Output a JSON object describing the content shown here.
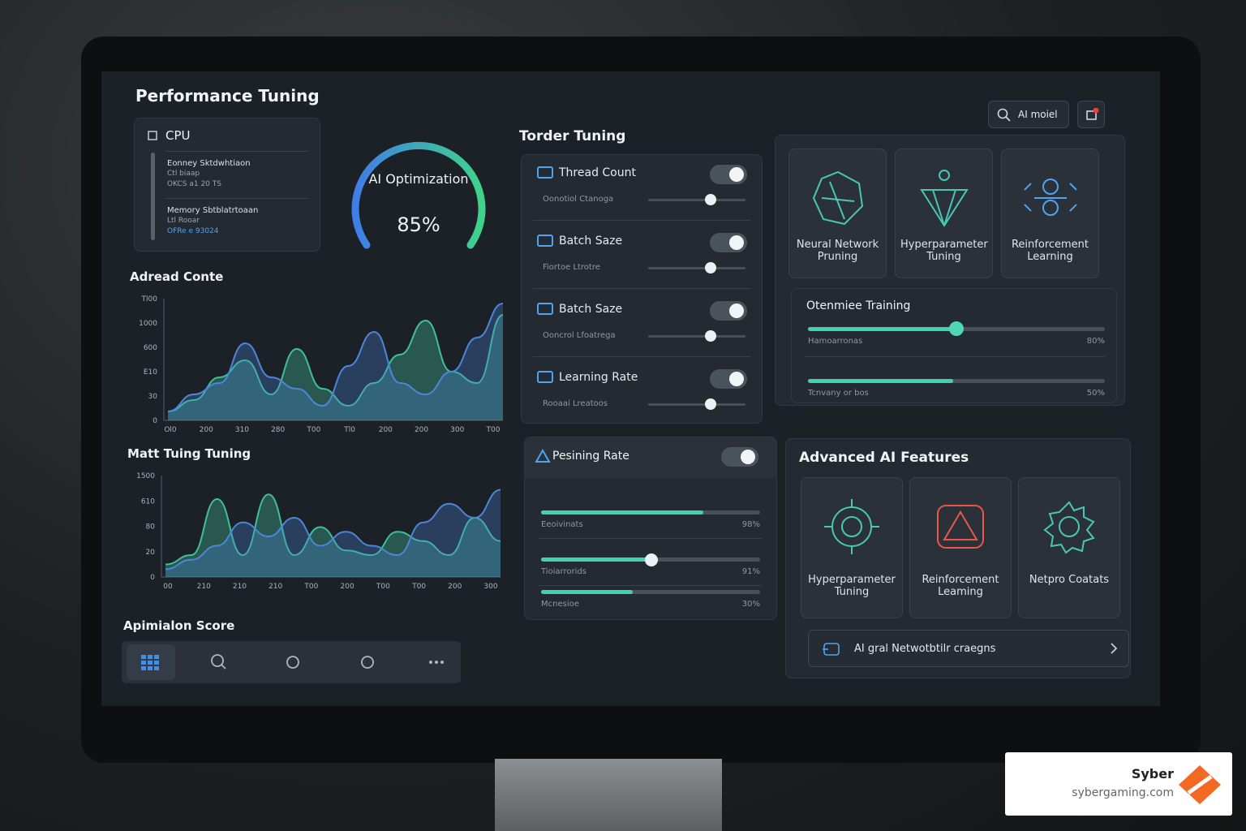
{
  "header": {
    "title": "Performance Tuning",
    "search": "AI moiel"
  },
  "cpu": {
    "title": "CPU",
    "items": [
      {
        "name": "Eonney Sktdwhtiaon",
        "lines": [
          "Ctl biaap",
          "OKCS a1 20 TS"
        ]
      },
      {
        "name": "Memory Sbtblatrtoaan",
        "lines": [
          "Ltl Rooar",
          "OFRe e 93024"
        ]
      }
    ]
  },
  "gauge": {
    "label": "AI Optimization",
    "value": "85%"
  },
  "charts": [
    {
      "title": "Adread Conte",
      "yticks": [
        "Tl00",
        "1000",
        "600",
        "E10",
        "30",
        "0"
      ],
      "xticks": [
        "Ol0",
        "200",
        "310",
        "280",
        "T00",
        "Tl0",
        "200",
        "200",
        "300",
        "T00"
      ]
    },
    {
      "title": "Matt Tuing Tuning",
      "yticks": [
        "1500",
        "610",
        "80",
        "20",
        "0"
      ],
      "xticks": [
        "00",
        "210",
        "210",
        "210",
        "T00",
        "200",
        "T00",
        "T00",
        "200",
        "300"
      ]
    }
  ],
  "score": {
    "title": "Apimialon Score"
  },
  "tuning": {
    "title": "Torder Tuning",
    "items": [
      {
        "name": "Thread Count",
        "sub": "Oonotiol Ctanoga"
      },
      {
        "name": "Batch Saze",
        "sub": "Fiortoe Ltrotre"
      },
      {
        "name": "Batch Saze",
        "sub": "Ooncrol Lfoatrega"
      },
      {
        "name": "Learning Rate",
        "sub": "Rooaai Lreatoos"
      }
    ]
  },
  "rate": {
    "title": "Pesining Rate",
    "rows": [
      {
        "name": "Eeoivinats",
        "value": "98%"
      },
      {
        "name": "Tioiarrorids",
        "value": "91%"
      },
      {
        "name": "Mcnesioe",
        "value": "30%"
      }
    ]
  },
  "features": {
    "cards": [
      "Neural Network Pruning",
      "Hyperparameter Tuning",
      "Reinforcement Learning"
    ]
  },
  "training": {
    "title": "Otenmiee Training",
    "rows": [
      {
        "name": "Hamoarronas",
        "value": "80%"
      },
      {
        "name": "Tcnvany or bos",
        "value": "50%"
      }
    ]
  },
  "advanced": {
    "title": "Advanced AI Features",
    "cards": [
      "Hyperparameter Tuning",
      "Reinforcement Leaming",
      "Netpro Coatats"
    ],
    "link": "AI gral Netwotbtilr craegns"
  },
  "watermark": {
    "brand": "Syber",
    "site": "sybergaming.com"
  }
}
